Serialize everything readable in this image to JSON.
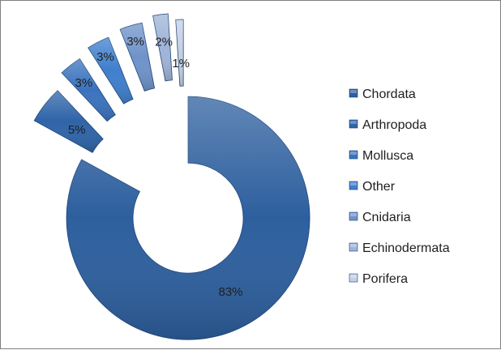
{
  "chart_data": {
    "type": "pie",
    "variant": "exploded-donut",
    "title": "",
    "legend_position": "right",
    "slices": [
      {
        "name": "Chordata",
        "value": 83,
        "label": "83%",
        "color": "#2d5f9e"
      },
      {
        "name": "Arthropoda",
        "value": 5,
        "label": "5%",
        "color": "#2f64a8"
      },
      {
        "name": "Mollusca",
        "value": 3,
        "label": "3%",
        "color": "#3a73bd"
      },
      {
        "name": "Other",
        "value": 3,
        "label": "3%",
        "color": "#3f7fcc"
      },
      {
        "name": "Cnidaria",
        "value": 3,
        "label": "3%",
        "color": "#6f93c9"
      },
      {
        "name": "Echinodermata",
        "value": 2,
        "label": "2%",
        "color": "#9fb4d8"
      },
      {
        "name": "Porifera",
        "value": 1,
        "label": "1%",
        "color": "#c3cfe4"
      }
    ]
  }
}
